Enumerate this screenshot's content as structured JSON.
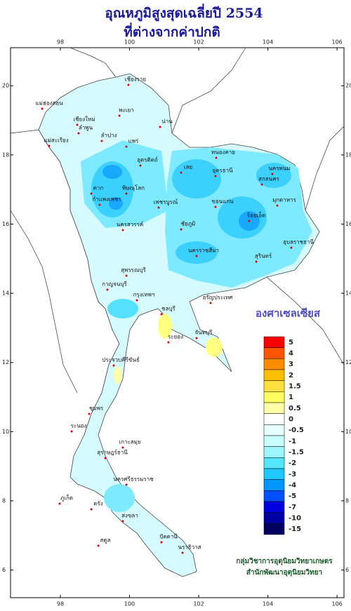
{
  "title": [
    "อุณหภูมิสูงสุดเฉลี่ยปี 2554",
    "ที่ต่างจากค่าปกติ"
  ],
  "map": {
    "lonlim": [
      96.56,
      106.2
    ],
    "latlim": [
      5.2,
      21.1
    ],
    "lonticks": [
      98,
      100,
      102,
      104,
      106
    ],
    "latticks": [
      6,
      8,
      10,
      12,
      14,
      16,
      18,
      20
    ]
  },
  "legend": {
    "title": "องศาเซลเซียส",
    "items": [
      {
        "value": 5,
        "color": "#ff0000"
      },
      {
        "value": 4,
        "color": "#ff5500"
      },
      {
        "value": 3,
        "color": "#ff8c00"
      },
      {
        "value": 2,
        "color": "#ffbf00"
      },
      {
        "value": 1.5,
        "color": "#ffe040"
      },
      {
        "value": 1,
        "color": "#ffff60"
      },
      {
        "value": 0.5,
        "color": "#ffffa8"
      },
      {
        "value": 0,
        "color": "#ffffff"
      },
      {
        "value": -0.5,
        "color": "#e6ffff"
      },
      {
        "value": -1,
        "color": "#c8ffff"
      },
      {
        "value": -1.5,
        "color": "#9ff5ff"
      },
      {
        "value": -2,
        "color": "#55e6ff"
      },
      {
        "value": -3,
        "color": "#1ec8ff"
      },
      {
        "value": -4,
        "color": "#0096ff"
      },
      {
        "value": -5,
        "color": "#0050ff"
      },
      {
        "value": -7,
        "color": "#0000e0"
      },
      {
        "value": -10,
        "color": "#0000a0"
      },
      {
        "value": -15,
        "color": "#000060"
      }
    ]
  },
  "places": [
    "เชียงราย",
    "แม่ฮ่องสอน",
    "เชียงใหม่",
    "ลำพูน",
    "ลำปาง",
    "พะเยา",
    "น่าน",
    "แพร่",
    "แม่สะเรียง",
    "อุตรดิตถ์",
    "ตาก",
    "พิษณุโลก",
    "กำแพงเพชร",
    "เพชรบูรณ์",
    "นครสวรรค์",
    "เลย",
    "หนองคาย",
    "อุดรธานี",
    "นครพนม",
    "สกลนคร",
    "มุกดาหาร",
    "ขอนแก่น",
    "ร้อยเอ็ด",
    "ชัยภูมิ",
    "อุบลราชธานี",
    "นครราชสีมา",
    "สุรินทร์",
    "สุพรรณบุรี",
    "กาญจนบุรี",
    "กรุงเทพฯ",
    "ชลบุรี",
    "ระยอง",
    "จันทบุรี",
    "อรัญประเทศ",
    "ประจวบคีรีขันธ์",
    "ชุมพร",
    "ระนอง",
    "สุราษฎร์ธานี",
    "เกาะสมุย",
    "ภูเก็ต",
    "นครศรีธรรมราช",
    "ตรัง",
    "สงขลา",
    "ปัตตานี",
    "นราธิวาส",
    "สตูล"
  ],
  "credits": [
    "กลุ่มวิชาการอุตุนิยมวิทยาเกษตร",
    "สำนักพัฒนาอุตุนิยมวิทยา"
  ]
}
